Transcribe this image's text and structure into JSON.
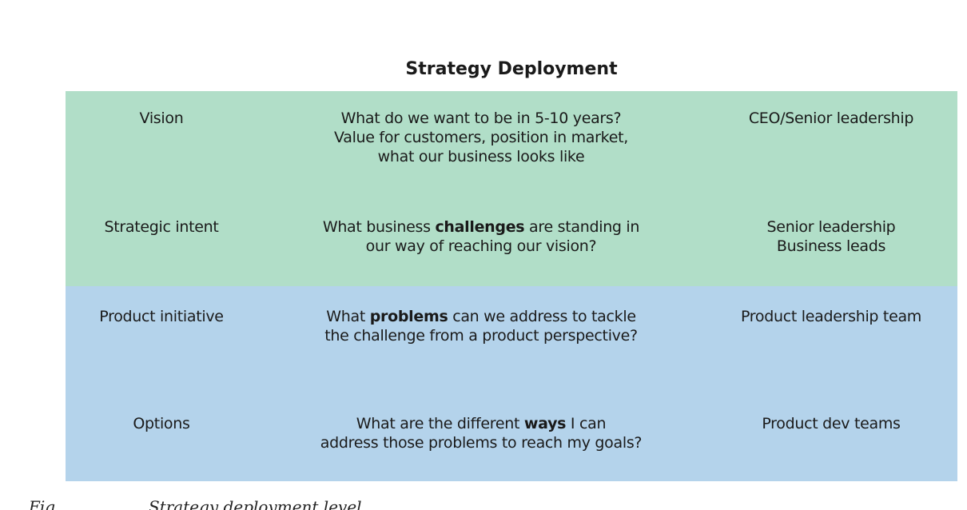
{
  "title": "Strategy Deployment",
  "colors": {
    "strategy_band": "#b1dec8",
    "product_band": "#b4d3eb"
  },
  "rows": [
    {
      "level": "Vision",
      "question": "What do we want to be in 5-10 years?\nValue for customers, position in market,\nwhat our business looks like",
      "owner": "CEO/Senior leadership"
    },
    {
      "level": "Strategic intent",
      "question_before": "What business ",
      "question_bold": "challenges",
      "question_after": " are standing in\nour way of reaching our vision?",
      "owner": "Senior leadership\nBusiness leads"
    },
    {
      "level": "Product initiative",
      "question_before": "What ",
      "question_bold": "problems",
      "question_after": " can we address to tackle\nthe challenge from a product perspective?",
      "owner": "Product leadership team"
    },
    {
      "level": "Options",
      "question_before": "What are the different ",
      "question_bold": "ways",
      "question_after": " I can\naddress those problems to reach my goals?",
      "owner": "Product dev teams"
    }
  ],
  "caption": {
    "lead": "Fig",
    "text": "Strategy deployment level"
  }
}
